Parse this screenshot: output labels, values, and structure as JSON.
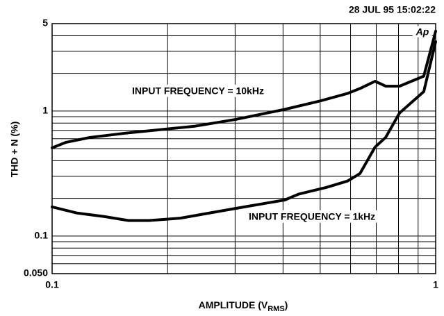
{
  "chart_data": {
    "type": "line",
    "title": "28 JUL 95 15:02:22",
    "badge": "Ap",
    "y_label": "THD + N (%)",
    "x_label_parts": [
      "AMPLITUDE (V",
      "RMS",
      ")"
    ],
    "log_x": true,
    "log_y": true,
    "grid": true,
    "xlim": [
      0.1,
      1
    ],
    "ylim": [
      0.05,
      5
    ],
    "xticks": [
      0.1,
      1
    ],
    "yticks": [
      5,
      1,
      0.1,
      {
        "value": 0.05,
        "label": "0.050"
      }
    ],
    "xminor": [
      0.2,
      0.3,
      0.4,
      0.5,
      0.6,
      0.7,
      0.8,
      0.9
    ],
    "yminor": [
      0.06,
      0.07,
      0.08,
      0.09,
      0.2,
      0.3,
      0.4,
      0.5,
      0.6,
      0.7,
      0.8,
      0.9,
      2,
      3,
      4
    ],
    "annotations": [
      "INPUT FREQUENCY = 10kHz",
      "INPUT FREQUENCY = 1kHz"
    ],
    "series": [
      {
        "color": "#000000",
        "x": [
          0.1,
          0.1087,
          0.1258,
          0.155,
          0.199,
          0.235,
          0.302,
          0.404,
          0.498,
          0.589,
          0.64,
          0.695,
          0.741,
          0.805,
          0.931,
          1.0
        ],
        "values": [
          0.507,
          0.562,
          0.615,
          0.664,
          0.717,
          0.755,
          0.858,
          1.03,
          1.2,
          1.38,
          1.53,
          1.73,
          1.58,
          1.58,
          1.9,
          4.35
        ]
      },
      {
        "color": "#000000",
        "x": [
          0.1,
          0.1157,
          0.137,
          0.158,
          0.179,
          0.216,
          0.267,
          0.328,
          0.404,
          0.439,
          0.519,
          0.589,
          0.635,
          0.695,
          0.741,
          0.805,
          0.931,
          1.0
        ],
        "values": [
          0.171,
          0.153,
          0.143,
          0.133,
          0.133,
          0.139,
          0.156,
          0.174,
          0.194,
          0.216,
          0.245,
          0.275,
          0.316,
          0.514,
          0.615,
          0.962,
          1.43,
          3.59
        ]
      }
    ]
  }
}
